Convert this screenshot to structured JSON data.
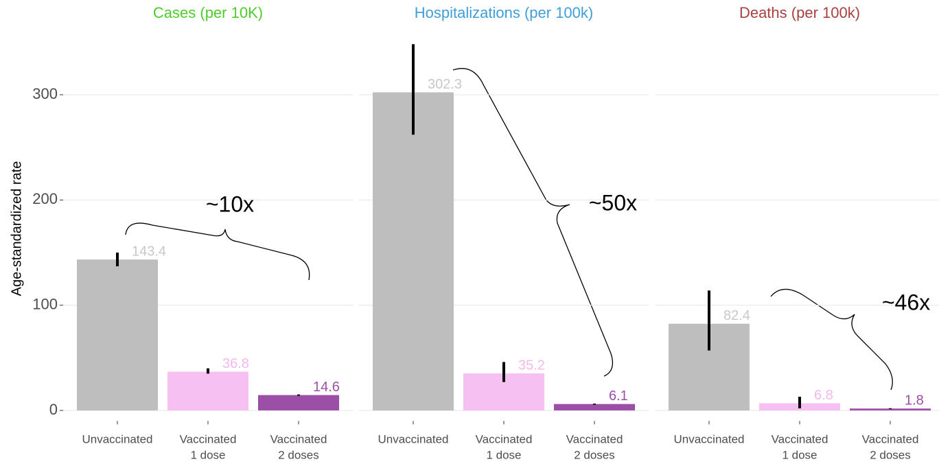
{
  "chart_data": [
    {
      "type": "bar",
      "title": "Cases (per 10K)",
      "title_color": "#4ccd2a",
      "ylabel": "Age-standardized rate",
      "ylim": [
        -10,
        355
      ],
      "yticks": [
        0,
        100,
        200,
        300
      ],
      "grid": true,
      "categories": [
        "Unvaccinated",
        "Vaccinated\n1 dose",
        "Vaccinated\n2 doses"
      ],
      "colors": [
        "#bebebe",
        "#f7c0f2",
        "#9b4fa6"
      ],
      "label_colors": [
        "#c8c8c8",
        "#f4b8ef",
        "#9b4fa6"
      ],
      "values": [
        143.4,
        36.8,
        14.6
      ],
      "error_lower": [
        137,
        35,
        14
      ],
      "error_upper": [
        150,
        40,
        15.2
      ],
      "annotation": "~10x"
    },
    {
      "type": "bar",
      "title": "Hospitalizations (per 100k)",
      "title_color": "#3e9fd9",
      "categories": [
        "Unvaccinated",
        "Vaccinated\n1 dose",
        "Vaccinated\n2 doses"
      ],
      "colors": [
        "#bebebe",
        "#f7c0f2",
        "#9b4fa6"
      ],
      "label_colors": [
        "#c8c8c8",
        "#f4b8ef",
        "#9b4fa6"
      ],
      "values": [
        302.3,
        35.2,
        6.1
      ],
      "error_lower": [
        262,
        27,
        5.5
      ],
      "error_upper": [
        348,
        46,
        6.5
      ],
      "annotation": "~50x"
    },
    {
      "type": "bar",
      "title": "Deaths (per 100k)",
      "title_color": "#a94040",
      "categories": [
        "Unvaccinated",
        "Vaccinated\n1 dose",
        "Vaccinated\n2 doses"
      ],
      "colors": [
        "#bebebe",
        "#f7c0f2",
        "#9b4fa6"
      ],
      "label_colors": [
        "#c8c8c8",
        "#f4b8ef",
        "#9b4fa6"
      ],
      "values": [
        82.4,
        6.8,
        1.8
      ],
      "error_lower": [
        57,
        2,
        1.3
      ],
      "error_upper": [
        114,
        13,
        2.1
      ],
      "annotation": "~46x"
    }
  ]
}
